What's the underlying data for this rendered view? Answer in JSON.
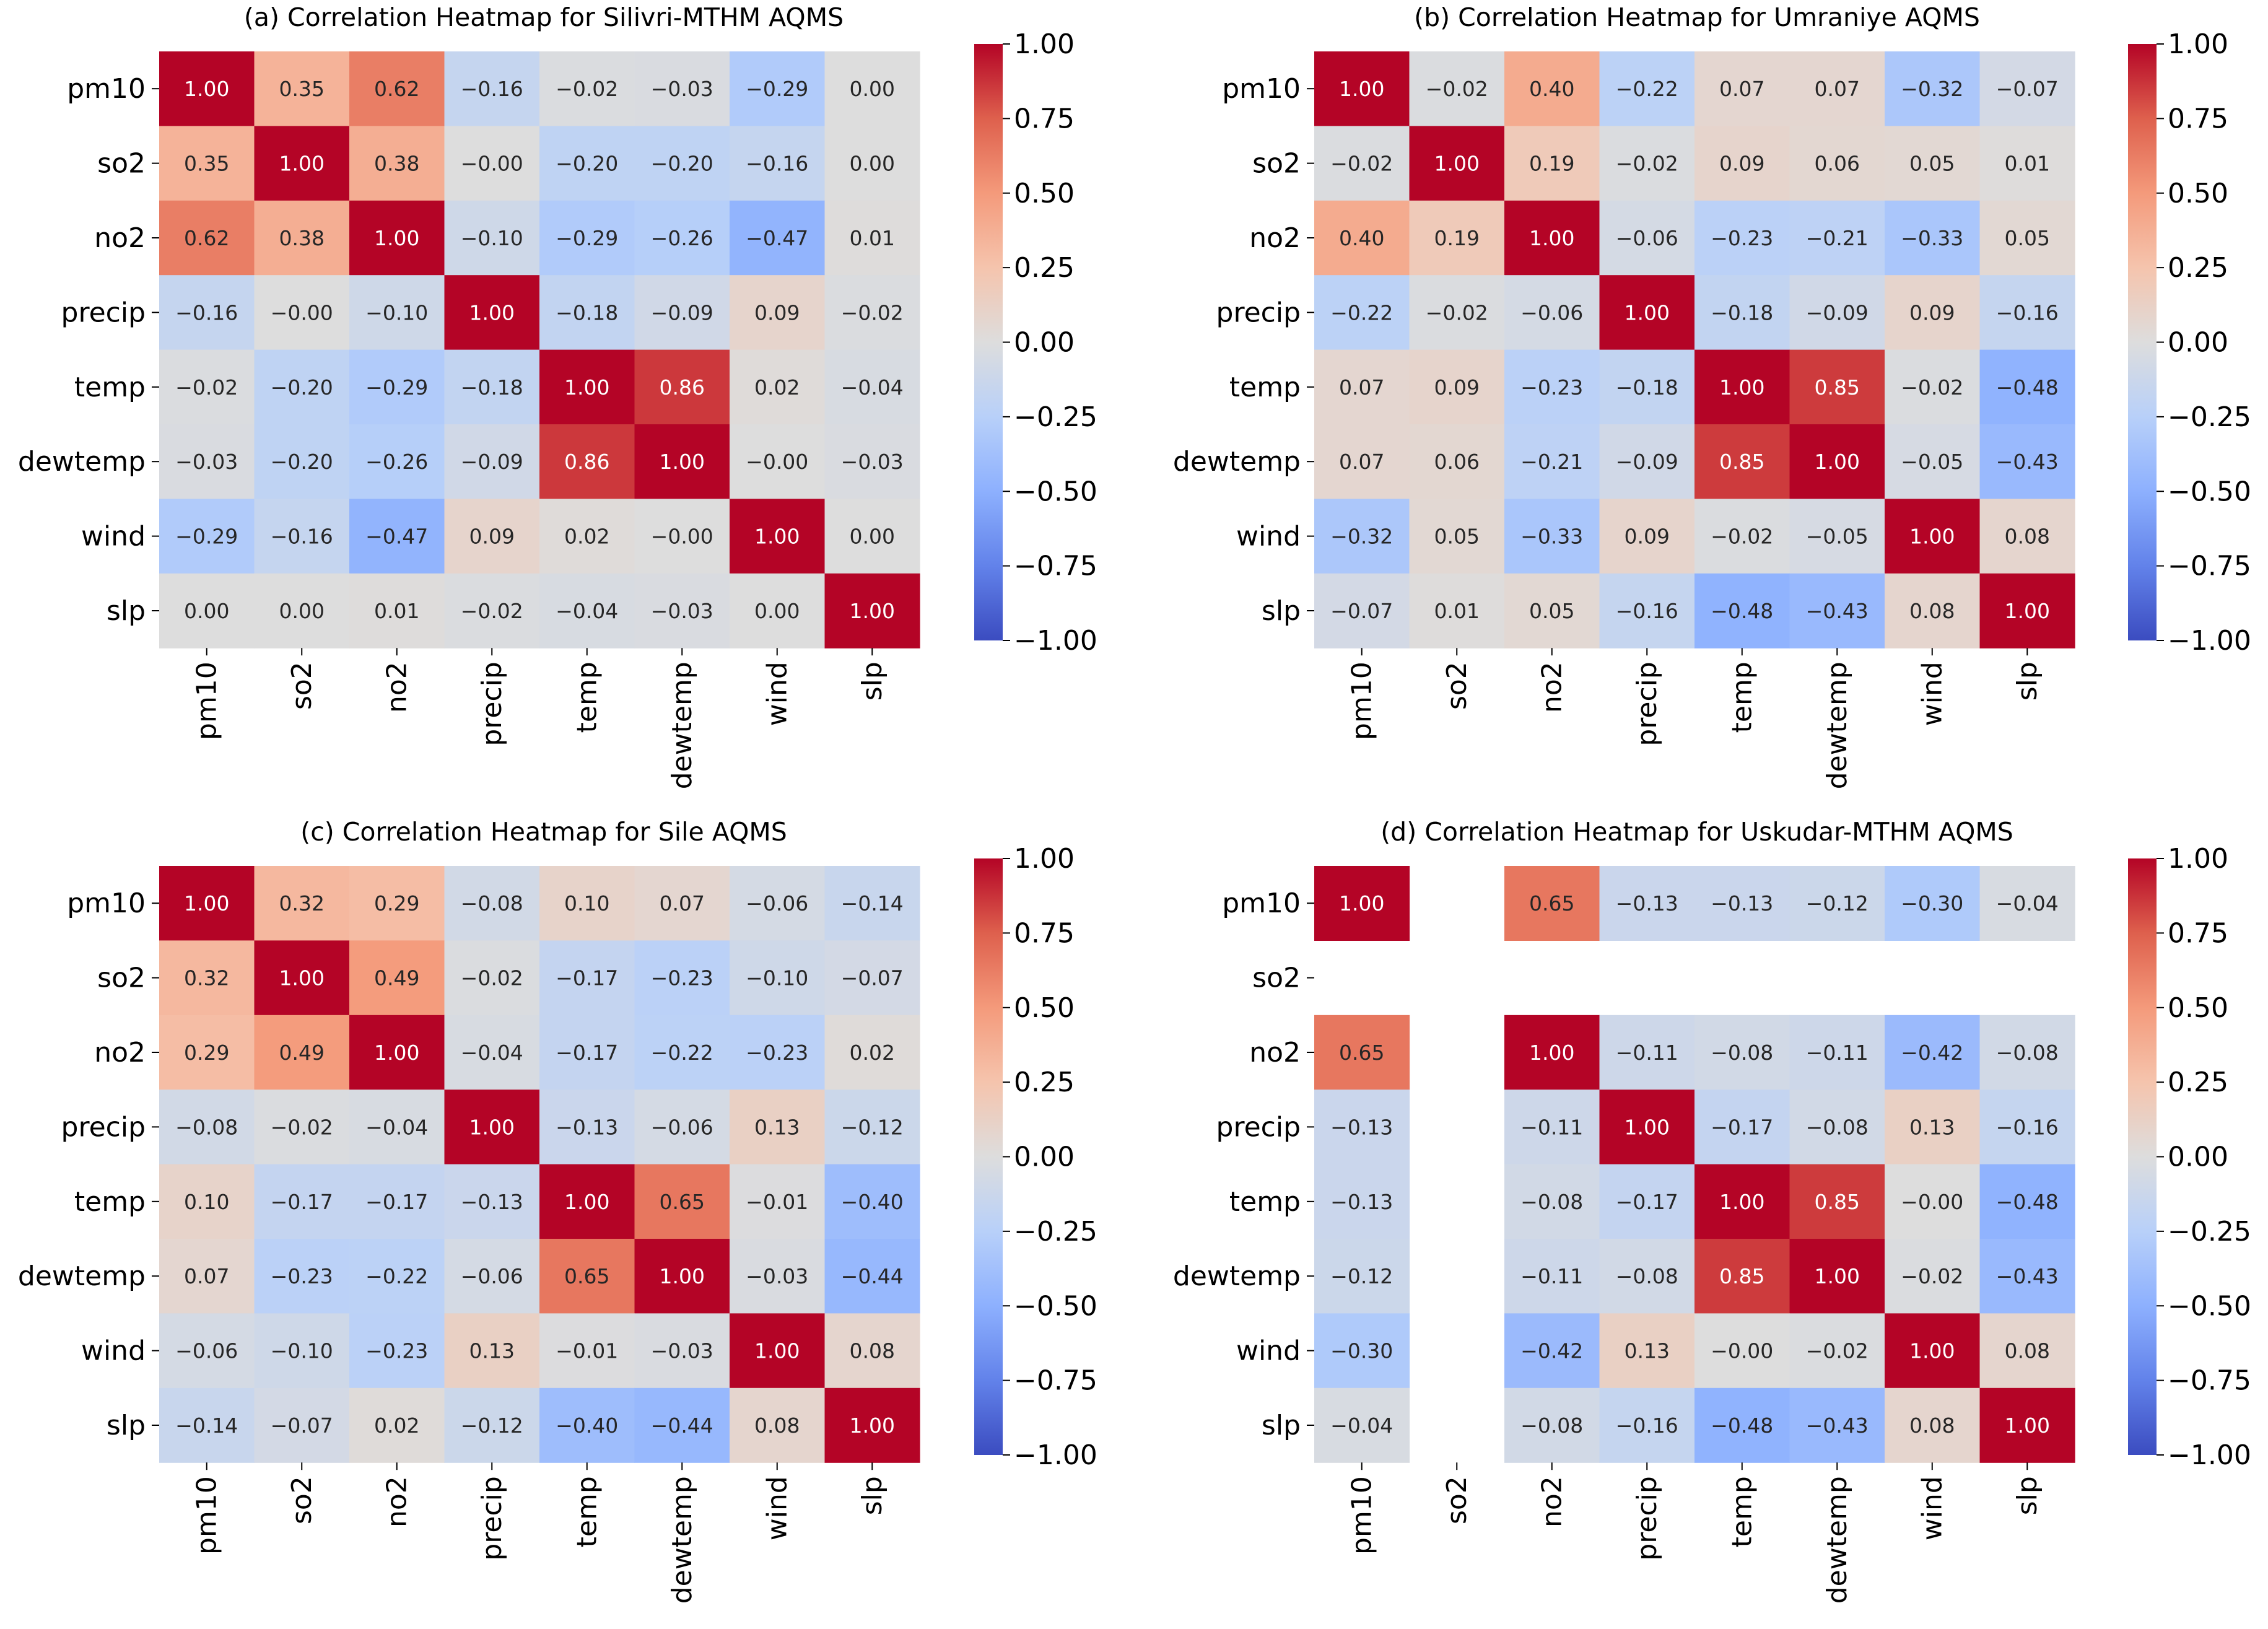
{
  "colorbar": {
    "ticks": [
      "1.00",
      "0.75",
      "0.50",
      "0.25",
      "0.00",
      "−0.25",
      "−0.50",
      "−0.75",
      "−1.00"
    ],
    "tick_values": [
      1.0,
      0.75,
      0.5,
      0.25,
      0.0,
      -0.25,
      -0.5,
      -0.75,
      -1.0
    ],
    "colormap": "coolwarm",
    "vmin": -1.0,
    "vmax": 1.0,
    "low_color": "#3b4cc0",
    "mid_color": "#dddddd",
    "high_color": "#b40426"
  },
  "chart_data": [
    {
      "type": "heatmap",
      "title": "(a) Correlation Heatmap for Silivri-MTHM AQMS",
      "rows": [
        "pm10",
        "so2",
        "no2",
        "precip",
        "temp",
        "dewtemp",
        "wind",
        "slp"
      ],
      "cols": [
        "pm10",
        "so2",
        "no2",
        "precip",
        "temp",
        "dewtemp",
        "wind",
        "slp"
      ],
      "values": [
        [
          1.0,
          0.35,
          0.62,
          -0.16,
          -0.02,
          -0.03,
          -0.29,
          0.0
        ],
        [
          0.35,
          1.0,
          0.38,
          -0.0,
          -0.2,
          -0.2,
          -0.16,
          0.0
        ],
        [
          0.62,
          0.38,
          1.0,
          -0.1,
          -0.29,
          -0.26,
          -0.47,
          0.01
        ],
        [
          -0.16,
          -0.0,
          -0.1,
          1.0,
          -0.18,
          -0.09,
          0.09,
          -0.02
        ],
        [
          -0.02,
          -0.2,
          -0.29,
          -0.18,
          1.0,
          0.86,
          0.02,
          -0.04
        ],
        [
          -0.03,
          -0.2,
          -0.26,
          -0.09,
          0.86,
          1.0,
          -0.0,
          -0.03
        ],
        [
          -0.29,
          -0.16,
          -0.47,
          0.09,
          0.02,
          -0.0,
          1.0,
          0.0
        ],
        [
          0.0,
          0.0,
          0.01,
          -0.02,
          -0.04,
          -0.03,
          0.0,
          1.0
        ]
      ]
    },
    {
      "type": "heatmap",
      "title": "(b) Correlation Heatmap for Umraniye AQMS",
      "rows": [
        "pm10",
        "so2",
        "no2",
        "precip",
        "temp",
        "dewtemp",
        "wind",
        "slp"
      ],
      "cols": [
        "pm10",
        "so2",
        "no2",
        "precip",
        "temp",
        "dewtemp",
        "wind",
        "slp"
      ],
      "values": [
        [
          1.0,
          -0.02,
          0.4,
          -0.22,
          0.07,
          0.07,
          -0.32,
          -0.07
        ],
        [
          -0.02,
          1.0,
          0.19,
          -0.02,
          0.09,
          0.06,
          0.05,
          0.01
        ],
        [
          0.4,
          0.19,
          1.0,
          -0.06,
          -0.23,
          -0.21,
          -0.33,
          0.05
        ],
        [
          -0.22,
          -0.02,
          -0.06,
          1.0,
          -0.18,
          -0.09,
          0.09,
          -0.16
        ],
        [
          0.07,
          0.09,
          -0.23,
          -0.18,
          1.0,
          0.85,
          -0.02,
          -0.48
        ],
        [
          0.07,
          0.06,
          -0.21,
          -0.09,
          0.85,
          1.0,
          -0.05,
          -0.43
        ],
        [
          -0.32,
          0.05,
          -0.33,
          0.09,
          -0.02,
          -0.05,
          1.0,
          0.08
        ],
        [
          -0.07,
          0.01,
          0.05,
          -0.16,
          -0.48,
          -0.43,
          0.08,
          1.0
        ]
      ]
    },
    {
      "type": "heatmap",
      "title": "(c) Correlation Heatmap for Sile AQMS",
      "rows": [
        "pm10",
        "so2",
        "no2",
        "precip",
        "temp",
        "dewtemp",
        "wind",
        "slp"
      ],
      "cols": [
        "pm10",
        "so2",
        "no2",
        "precip",
        "temp",
        "dewtemp",
        "wind",
        "slp"
      ],
      "values": [
        [
          1.0,
          0.32,
          0.29,
          -0.08,
          0.1,
          0.07,
          -0.06,
          -0.14
        ],
        [
          0.32,
          1.0,
          0.49,
          -0.02,
          -0.17,
          -0.23,
          -0.1,
          -0.07
        ],
        [
          0.29,
          0.49,
          1.0,
          -0.04,
          -0.17,
          -0.22,
          -0.23,
          0.02
        ],
        [
          -0.08,
          -0.02,
          -0.04,
          1.0,
          -0.13,
          -0.06,
          0.13,
          -0.12
        ],
        [
          0.1,
          -0.17,
          -0.17,
          -0.13,
          1.0,
          0.65,
          -0.01,
          -0.4
        ],
        [
          0.07,
          -0.23,
          -0.22,
          -0.06,
          0.65,
          1.0,
          -0.03,
          -0.44
        ],
        [
          -0.06,
          -0.1,
          -0.23,
          0.13,
          -0.01,
          -0.03,
          1.0,
          0.08
        ],
        [
          -0.14,
          -0.07,
          0.02,
          -0.12,
          -0.4,
          -0.44,
          0.08,
          1.0
        ]
      ]
    },
    {
      "type": "heatmap",
      "title": "(d) Correlation Heatmap for Uskudar-MTHM AQMS",
      "rows": [
        "pm10",
        "so2",
        "no2",
        "precip",
        "temp",
        "dewtemp",
        "wind",
        "slp"
      ],
      "cols": [
        "pm10",
        "so2",
        "no2",
        "precip",
        "temp",
        "dewtemp",
        "wind",
        "slp"
      ],
      "values": [
        [
          1.0,
          null,
          0.65,
          -0.13,
          -0.13,
          -0.12,
          -0.3,
          -0.04
        ],
        [
          null,
          null,
          null,
          null,
          null,
          null,
          null,
          null
        ],
        [
          0.65,
          null,
          1.0,
          -0.11,
          -0.08,
          -0.11,
          -0.42,
          -0.08
        ],
        [
          -0.13,
          null,
          -0.11,
          1.0,
          -0.17,
          -0.08,
          0.13,
          -0.16
        ],
        [
          -0.13,
          null,
          -0.08,
          -0.17,
          1.0,
          0.85,
          -0.0,
          -0.48
        ],
        [
          -0.12,
          null,
          -0.11,
          -0.08,
          0.85,
          1.0,
          -0.02,
          -0.43
        ],
        [
          -0.3,
          null,
          -0.42,
          0.13,
          -0.0,
          -0.02,
          1.0,
          0.08
        ],
        [
          -0.04,
          null,
          -0.08,
          -0.16,
          -0.48,
          -0.43,
          0.08,
          1.0
        ]
      ]
    }
  ]
}
